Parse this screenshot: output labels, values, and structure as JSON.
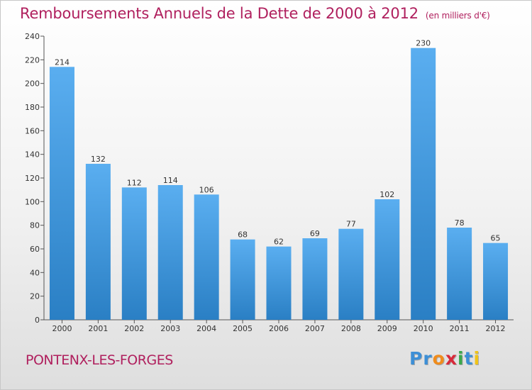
{
  "title": "Remboursements Annuels de la Dette de 2000 à 2012",
  "subtitle": "(en milliers d'€)",
  "commune": "PONTENX-LES-FORGES",
  "logo": {
    "text": "Proxiti",
    "letters": [
      {
        "char": "P",
        "color": "#3d8fd6"
      },
      {
        "char": "r",
        "color": "#3d8fd6"
      },
      {
        "char": "o",
        "color": "#f08c1c"
      },
      {
        "char": "x",
        "color": "#d8293a"
      },
      {
        "char": "i",
        "color": "#3aa84a"
      },
      {
        "char": "t",
        "color": "#3d8fd6"
      },
      {
        "char": "i",
        "color": "#f0c419"
      }
    ]
  },
  "colors": {
    "title": "#b0205e",
    "bar_top": "#5aaef0",
    "bar_bottom": "#2a7fc4"
  },
  "chart_data": {
    "type": "bar",
    "categories": [
      "2000",
      "2001",
      "2002",
      "2003",
      "2004",
      "2005",
      "2006",
      "2007",
      "2008",
      "2009",
      "2010",
      "2011",
      "2012"
    ],
    "values": [
      214,
      132,
      112,
      114,
      106,
      68,
      62,
      69,
      77,
      102,
      230,
      78,
      65
    ],
    "ylim": [
      0,
      240
    ],
    "yticks": [
      0,
      20,
      40,
      60,
      80,
      100,
      120,
      140,
      160,
      180,
      200,
      220,
      240
    ],
    "grid": false
  }
}
